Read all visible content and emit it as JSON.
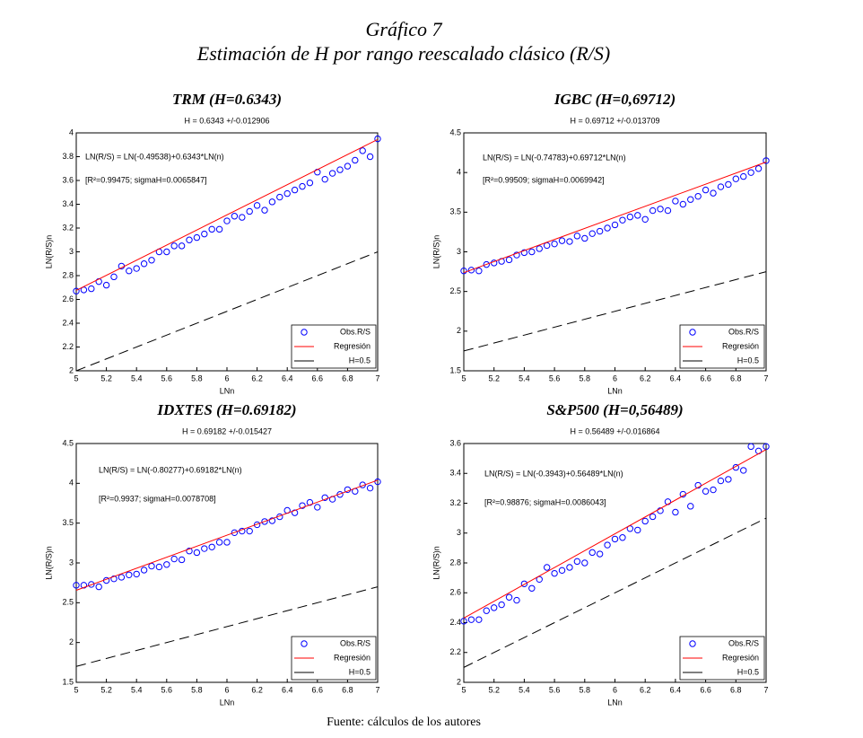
{
  "header": {
    "label": "Gráfico 7",
    "title": "Estimación de H por rango reescalado clásico (R/S)"
  },
  "footer": "Fuente: cálculos de los autores",
  "chart_data": [
    {
      "type": "scatter",
      "title": "TRM (H=0.6343)",
      "subtitle": "H = 0.6343 +/-0.012906",
      "annotations": [
        "LN(R/S) = LN(-0.49538)+0.6343*LN(n)",
        "[R²=0.99475; sigmaH=0.0065847]"
      ],
      "x_label": "LNn",
      "y_label": "LN(R/S)n",
      "legend": "lower right",
      "xlim": [
        5,
        7
      ],
      "xticks": [
        5,
        5.2,
        5.4,
        5.6,
        5.8,
        6,
        6.2,
        6.4,
        6.6,
        6.8,
        7
      ],
      "ylim": [
        2,
        4
      ],
      "yticks": [
        2,
        2.2,
        2.4,
        2.6,
        2.8,
        3,
        3.2,
        3.4,
        3.6,
        3.8,
        4
      ],
      "series": [
        {
          "name": "Obs.R/S",
          "color": "#0000ff",
          "style": "circle",
          "x": [
            5,
            5.05,
            5.1,
            5.15,
            5.2,
            5.25,
            5.3,
            5.35,
            5.4,
            5.45,
            5.5,
            5.55,
            5.6,
            5.65,
            5.7,
            5.75,
            5.8,
            5.85,
            5.9,
            5.95,
            6,
            6.05,
            6.1,
            6.15,
            6.2,
            6.25,
            6.3,
            6.35,
            6.4,
            6.45,
            6.5,
            6.55,
            6.6,
            6.65,
            6.7,
            6.75,
            6.8,
            6.85,
            6.9,
            6.95,
            7
          ],
          "values": [
            2.67,
            2.68,
            2.69,
            2.75,
            2.72,
            2.79,
            2.88,
            2.84,
            2.86,
            2.9,
            2.93,
            3,
            3,
            3.05,
            3.05,
            3.1,
            3.12,
            3.15,
            3.19,
            3.19,
            3.26,
            3.3,
            3.29,
            3.34,
            3.39,
            3.35,
            3.42,
            3.46,
            3.49,
            3.52,
            3.55,
            3.58,
            3.67,
            3.61,
            3.66,
            3.69,
            3.72,
            3.77,
            3.85,
            3.8,
            3.95
          ]
        },
        {
          "name": "Regresión",
          "color": "#ff0000",
          "style": "solid",
          "x": [
            5,
            7
          ],
          "values": [
            2.67612,
            3.94472
          ]
        },
        {
          "name": "H=0.5",
          "color": "#000000",
          "style": "dashed",
          "x": [
            5,
            7
          ],
          "values": [
            2,
            3
          ]
        }
      ]
    },
    {
      "type": "scatter",
      "title": "IGBC (H=0,69712)",
      "subtitle": "H = 0.69712 +/-0.013709",
      "annotations": [
        "LN(R/S) = LN(-0.74783)+0.69712*LN(n)",
        "[R²=0.99509; sigmaH=0.0069942]"
      ],
      "x_label": "LNn",
      "y_label": "LN(R/S)n",
      "legend": "lower right",
      "xlim": [
        5,
        7
      ],
      "xticks": [
        5,
        5.2,
        5.4,
        5.6,
        5.8,
        6,
        6.2,
        6.4,
        6.6,
        6.8,
        7
      ],
      "ylim": [
        1.5,
        4.5
      ],
      "yticks": [
        1.5,
        2,
        2.5,
        3,
        3.5,
        4,
        4.5
      ],
      "series": [
        {
          "name": "Obs.R/S",
          "color": "#0000ff",
          "style": "circle",
          "x": [
            5,
            5.05,
            5.1,
            5.15,
            5.2,
            5.25,
            5.3,
            5.35,
            5.4,
            5.45,
            5.5,
            5.55,
            5.6,
            5.65,
            5.7,
            5.75,
            5.8,
            5.85,
            5.9,
            5.95,
            6,
            6.05,
            6.1,
            6.15,
            6.2,
            6.25,
            6.3,
            6.35,
            6.4,
            6.45,
            6.5,
            6.55,
            6.6,
            6.65,
            6.7,
            6.75,
            6.8,
            6.85,
            6.9,
            6.95,
            7
          ],
          "values": [
            2.76,
            2.77,
            2.76,
            2.84,
            2.86,
            2.88,
            2.9,
            2.96,
            2.99,
            3,
            3.04,
            3.08,
            3.1,
            3.14,
            3.13,
            3.2,
            3.17,
            3.23,
            3.26,
            3.3,
            3.34,
            3.4,
            3.44,
            3.46,
            3.41,
            3.52,
            3.54,
            3.52,
            3.64,
            3.6,
            3.66,
            3.7,
            3.78,
            3.74,
            3.82,
            3.85,
            3.92,
            3.95,
            4,
            4.05,
            4.15
          ]
        },
        {
          "name": "Regresión",
          "color": "#ff0000",
          "style": "solid",
          "x": [
            5,
            7
          ],
          "values": [
            2.73777,
            4.13201
          ]
        },
        {
          "name": "H=0.5",
          "color": "#000000",
          "style": "dashed",
          "x": [
            5,
            7
          ],
          "values": [
            1.75,
            2.75
          ]
        }
      ]
    },
    {
      "type": "scatter",
      "title": "IDXTES (H=0.69182)",
      "subtitle": "H = 0.69182 +/-0.015427",
      "annotations": [
        "LN(R/S) = LN(-0.80277)+0.69182*LN(n)",
        "[R²=0.9937; sigmaH=0.0078708]"
      ],
      "x_label": "LNn",
      "y_label": "LN(R/S)n",
      "legend": "lower right",
      "xlim": [
        5,
        7
      ],
      "xticks": [
        5,
        5.2,
        5.4,
        5.6,
        5.8,
        6,
        6.2,
        6.4,
        6.6,
        6.8,
        7
      ],
      "ylim": [
        1.5,
        4.5
      ],
      "yticks": [
        1.5,
        2,
        2.5,
        3,
        3.5,
        4,
        4.5
      ],
      "series": [
        {
          "name": "Obs.R/S",
          "color": "#0000ff",
          "style": "circle",
          "x": [
            5,
            5.05,
            5.1,
            5.15,
            5.2,
            5.25,
            5.3,
            5.35,
            5.4,
            5.45,
            5.5,
            5.55,
            5.6,
            5.65,
            5.7,
            5.75,
            5.8,
            5.85,
            5.9,
            5.95,
            6,
            6.05,
            6.1,
            6.15,
            6.2,
            6.25,
            6.3,
            6.35,
            6.4,
            6.45,
            6.5,
            6.55,
            6.6,
            6.65,
            6.7,
            6.75,
            6.8,
            6.85,
            6.9,
            6.95,
            7
          ],
          "values": [
            2.72,
            2.72,
            2.73,
            2.7,
            2.78,
            2.8,
            2.82,
            2.85,
            2.86,
            2.91,
            2.96,
            2.95,
            2.98,
            3.05,
            3.04,
            3.15,
            3.13,
            3.18,
            3.2,
            3.26,
            3.26,
            3.38,
            3.4,
            3.4,
            3.48,
            3.52,
            3.53,
            3.58,
            3.66,
            3.63,
            3.72,
            3.76,
            3.7,
            3.82,
            3.8,
            3.86,
            3.92,
            3.9,
            3.98,
            3.94,
            4.02
          ]
        },
        {
          "name": "Regresión",
          "color": "#ff0000",
          "style": "solid",
          "x": [
            5,
            7
          ],
          "values": [
            2.65633,
            4.03997
          ]
        },
        {
          "name": "H=0.5",
          "color": "#000000",
          "style": "dashed",
          "x": [
            5,
            7
          ],
          "values": [
            1.7,
            2.7
          ]
        }
      ]
    },
    {
      "type": "scatter",
      "title": "S&P500 (H=0,56489)",
      "subtitle": "H = 0.56489 +/-0.016864",
      "annotations": [
        "LN(R/S) = LN(-0.3943)+0.56489*LN(n)",
        "[R²=0.98876; sigmaH=0.0086043]"
      ],
      "x_label": "LNn",
      "y_label": "LN(R/S)n",
      "legend": "lower right",
      "xlim": [
        5,
        7
      ],
      "xticks": [
        5,
        5.2,
        5.4,
        5.6,
        5.8,
        6,
        6.2,
        6.4,
        6.6,
        6.8,
        7
      ],
      "ylim": [
        2,
        3.6
      ],
      "yticks": [
        2,
        2.2,
        2.4,
        2.6,
        2.8,
        3,
        3.2,
        3.4,
        3.6
      ],
      "series": [
        {
          "name": "Obs.R/S",
          "color": "#0000ff",
          "style": "circle",
          "x": [
            5,
            5.05,
            5.1,
            5.15,
            5.2,
            5.25,
            5.3,
            5.35,
            5.4,
            5.45,
            5.5,
            5.55,
            5.6,
            5.65,
            5.7,
            5.75,
            5.8,
            5.85,
            5.9,
            5.95,
            6,
            6.05,
            6.1,
            6.15,
            6.2,
            6.25,
            6.3,
            6.35,
            6.4,
            6.45,
            6.5,
            6.55,
            6.6,
            6.65,
            6.7,
            6.75,
            6.8,
            6.85,
            6.9,
            6.95,
            7
          ],
          "values": [
            2.41,
            2.42,
            2.42,
            2.48,
            2.5,
            2.52,
            2.57,
            2.55,
            2.66,
            2.63,
            2.69,
            2.77,
            2.73,
            2.75,
            2.77,
            2.81,
            2.8,
            2.87,
            2.86,
            2.92,
            2.96,
            2.97,
            3.03,
            3.02,
            3.08,
            3.11,
            3.15,
            3.21,
            3.14,
            3.26,
            3.18,
            3.32,
            3.28,
            3.29,
            3.35,
            3.36,
            3.44,
            3.42,
            3.58,
            3.55,
            3.58
          ]
        },
        {
          "name": "Regresión",
          "color": "#ff0000",
          "style": "solid",
          "x": [
            5,
            7
          ],
          "values": [
            2.43015,
            3.55993
          ]
        },
        {
          "name": "H=0.5",
          "color": "#000000",
          "style": "dashed",
          "x": [
            5,
            7
          ],
          "values": [
            2.1,
            3.1
          ]
        }
      ]
    }
  ]
}
